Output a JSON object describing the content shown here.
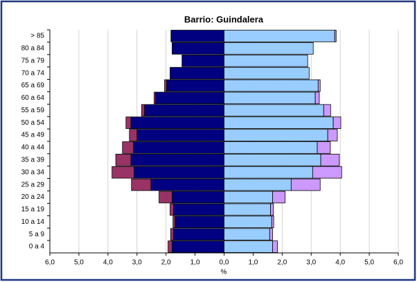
{
  "chart_data": {
    "type": "pyramid",
    "title": "Barrio: Guindalera",
    "xlabel": "%",
    "categories": [
      "> 85",
      "80 a 84",
      "75 a 79",
      "70 a 74",
      "65 a 69",
      "60 a 64",
      "55 a 59",
      "50 a 54",
      "45 a 49",
      "40 a 44",
      "35 a 39",
      "30 a 34",
      "25 a 29",
      "20 a 24",
      "15 a 19",
      "10 a 14",
      "5 a 9",
      "0 a 4"
    ],
    "series": [
      {
        "color": "#000080",
        "side": "left",
        "values": [
          1.83,
          1.79,
          1.45,
          1.86,
          1.98,
          2.36,
          2.74,
          3.21,
          3.0,
          3.12,
          3.21,
          3.1,
          2.52,
          1.79,
          1.74,
          1.69,
          1.74,
          1.79
        ]
      },
      {
        "color": "#993366",
        "side": "left",
        "values": [
          0,
          0,
          0,
          0,
          0.07,
          0.05,
          0.1,
          0.17,
          0.26,
          0.38,
          0.52,
          0.76,
          0.67,
          0.45,
          0.12,
          0.07,
          0.1,
          0.14
        ]
      },
      {
        "color": "#99ccff",
        "side": "right",
        "values": [
          3.81,
          3.07,
          2.88,
          2.93,
          3.24,
          3.14,
          3.43,
          3.76,
          3.57,
          3.21,
          3.33,
          3.05,
          2.31,
          1.67,
          1.6,
          1.64,
          1.57,
          1.67
        ]
      },
      {
        "color": "#cc99ff",
        "side": "right",
        "values": [
          0.05,
          0,
          0,
          0,
          0.07,
          0.14,
          0.24,
          0.26,
          0.33,
          0.45,
          0.64,
          1.0,
          1.0,
          0.43,
          0.1,
          0.07,
          0.1,
          0.17
        ]
      }
    ],
    "xlim": [
      -6,
      6
    ],
    "xticks": [
      {
        "value": -6,
        "label": "6,0"
      },
      {
        "value": -5,
        "label": "5,0"
      },
      {
        "value": -4,
        "label": "4,0"
      },
      {
        "value": -3,
        "label": "3,0"
      },
      {
        "value": -2,
        "label": "2,0"
      },
      {
        "value": -1,
        "label": "1,0"
      },
      {
        "value": 0,
        "label": "0,0"
      },
      {
        "value": 1,
        "label": "1,0"
      },
      {
        "value": 2,
        "label": "2,0"
      },
      {
        "value": 3,
        "label": "3,0"
      },
      {
        "value": 4,
        "label": "4,0"
      },
      {
        "value": 5,
        "label": "5,0"
      },
      {
        "value": 6,
        "label": "6,0"
      }
    ],
    "grid": true
  }
}
